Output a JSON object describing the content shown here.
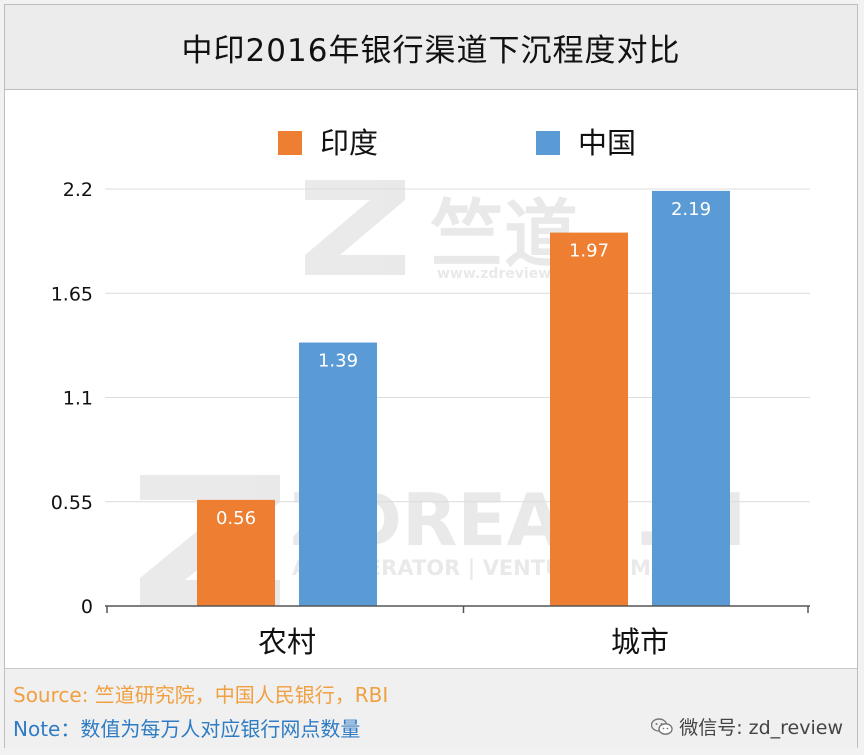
{
  "title": "中印2016年银行渠道下沉程度对比",
  "watermark": {
    "logo_text": "竺道",
    "logo_url": "www.zdreview.com",
    "brand": "ZDREAM.iN",
    "tagline": "ACCELERATOR | VENTURES | MEDIA"
  },
  "footer": {
    "source": "Source: 竺道研究院，中国人民银行，RBI",
    "note": "Note：数值为每万人对应银行网点数量",
    "wechat": "微信号: zd_review"
  },
  "chart_data": {
    "type": "bar",
    "categories": [
      "农村",
      "城市"
    ],
    "series": [
      {
        "name": "印度",
        "color": "#ee7f32",
        "values": [
          0.56,
          1.97
        ]
      },
      {
        "name": "中国",
        "color": "#5b9bd5",
        "values": [
          1.39,
          2.19
        ]
      }
    ],
    "yticks": [
      "0",
      "0.55",
      "1.1",
      "1.65",
      "2.2"
    ],
    "ylim": [
      0,
      2.2
    ],
    "grid": true,
    "legend": "top-center",
    "data_labels": true
  }
}
